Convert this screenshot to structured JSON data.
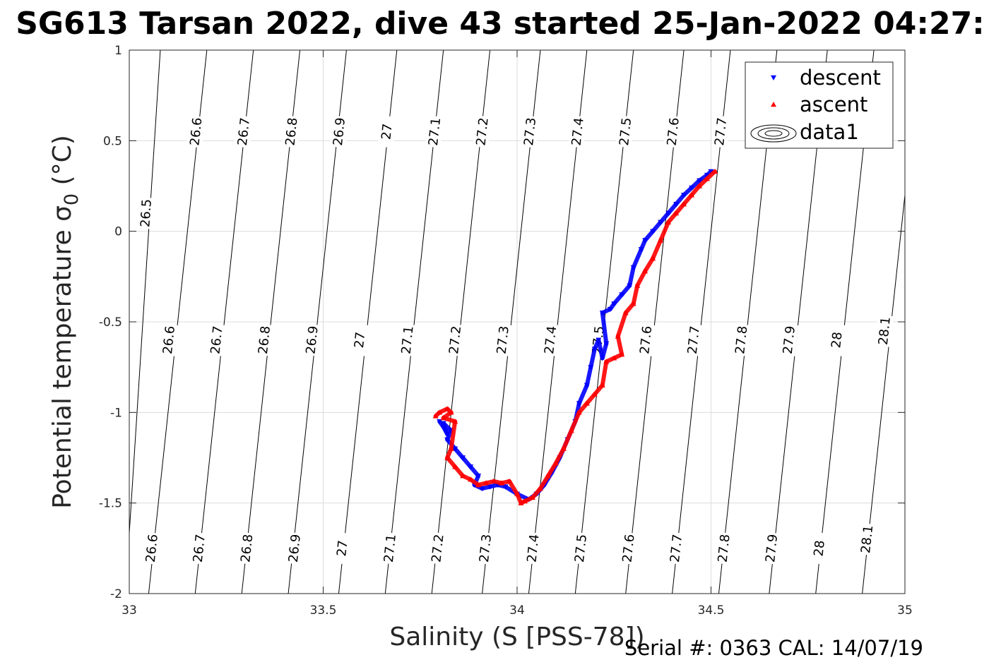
{
  "chart_data": {
    "type": "scatter",
    "title": "SG613 Tarsan 2022, dive 43 started 25-Jan-2022 04:27:",
    "xlabel": "Salinity (S [PSS-78])",
    "ylabel_main": "Potential temperature ",
    "ylabel_sigma": "σ",
    "ylabel_sub": "0",
    "ylabel_unit": " (°C)",
    "xlim": [
      33,
      35
    ],
    "ylim": [
      -2,
      1
    ],
    "x_ticks": [
      33,
      33.5,
      34,
      34.5,
      35
    ],
    "x_tick_labels": [
      "33",
      "33.5",
      "34",
      "34.5",
      "35"
    ],
    "y_ticks": [
      1,
      0.5,
      0,
      -0.5,
      -1,
      -1.5,
      -2
    ],
    "y_tick_labels": [
      "1",
      "0.5",
      "0",
      "-0.5",
      "-1",
      "-1.5",
      "-2"
    ],
    "grid": true,
    "legend_position": "top-right",
    "legend": [
      {
        "label": "descent",
        "color": "#0000ff",
        "marker": "triangle-down"
      },
      {
        "label": "ascent",
        "color": "#ff0000",
        "marker": "triangle-up"
      },
      {
        "label": "data1",
        "color": "#000000",
        "marker": "contour"
      }
    ],
    "isopycnals": [
      {
        "level": "26.5",
        "x_at_top": 33.08,
        "x_at_bottom": 32.99,
        "labels": [
          {
            "x": 33.043,
            "y": 0.1
          }
        ]
      },
      {
        "level": "26.6",
        "x_at_top": 33.2,
        "x_at_bottom": 33.05,
        "labels": [
          {
            "x": 33.172,
            "y": 0.55
          },
          {
            "x": 33.102,
            "y": -0.6
          },
          {
            "x": 33.058,
            "y": -1.75
          }
        ]
      },
      {
        "level": "26.7",
        "x_at_top": 33.32,
        "x_at_bottom": 33.17,
        "labels": [
          {
            "x": 33.295,
            "y": 0.55
          },
          {
            "x": 33.225,
            "y": -0.6
          },
          {
            "x": 33.18,
            "y": -1.75
          }
        ]
      },
      {
        "level": "26.8",
        "x_at_top": 33.44,
        "x_at_bottom": 33.29,
        "labels": [
          {
            "x": 33.418,
            "y": 0.55
          },
          {
            "x": 33.348,
            "y": -0.6
          },
          {
            "x": 33.303,
            "y": -1.75
          }
        ]
      },
      {
        "level": "26.9",
        "x_at_top": 33.56,
        "x_at_bottom": 33.41,
        "labels": [
          {
            "x": 33.541,
            "y": 0.55
          },
          {
            "x": 33.471,
            "y": -0.6
          },
          {
            "x": 33.426,
            "y": -1.75
          }
        ]
      },
      {
        "level": "27",
        "x_at_top": 33.69,
        "x_at_bottom": 33.54,
        "labels": [
          {
            "x": 33.664,
            "y": 0.55
          },
          {
            "x": 33.594,
            "y": -0.6
          },
          {
            "x": 33.549,
            "y": -1.75
          }
        ]
      },
      {
        "level": "27.1",
        "x_at_top": 33.81,
        "x_at_bottom": 33.66,
        "labels": [
          {
            "x": 33.787,
            "y": 0.55
          },
          {
            "x": 33.717,
            "y": -0.6
          },
          {
            "x": 33.672,
            "y": -1.75
          }
        ]
      },
      {
        "level": "27.2",
        "x_at_top": 33.93,
        "x_at_bottom": 33.78,
        "labels": [
          {
            "x": 33.91,
            "y": 0.55
          },
          {
            "x": 33.84,
            "y": -0.6
          },
          {
            "x": 33.795,
            "y": -1.75
          }
        ]
      },
      {
        "level": "27.3",
        "x_at_top": 34.06,
        "x_at_bottom": 33.91,
        "labels": [
          {
            "x": 34.033,
            "y": 0.55
          },
          {
            "x": 33.963,
            "y": -0.6
          },
          {
            "x": 33.918,
            "y": -1.75
          }
        ]
      },
      {
        "level": "27.4",
        "x_at_top": 34.18,
        "x_at_bottom": 34.03,
        "labels": [
          {
            "x": 34.156,
            "y": 0.55
          },
          {
            "x": 34.086,
            "y": -0.6
          },
          {
            "x": 34.041,
            "y": -1.75
          }
        ]
      },
      {
        "level": "27.5",
        "x_at_top": 34.3,
        "x_at_bottom": 34.15,
        "labels": [
          {
            "x": 34.279,
            "y": 0.55
          },
          {
            "x": 34.209,
            "y": -0.6
          },
          {
            "x": 34.164,
            "y": -1.75
          }
        ]
      },
      {
        "level": "27.6",
        "x_at_top": 34.43,
        "x_at_bottom": 34.28,
        "labels": [
          {
            "x": 34.402,
            "y": 0.55
          },
          {
            "x": 34.332,
            "y": -0.6
          },
          {
            "x": 34.287,
            "y": -1.75
          }
        ]
      },
      {
        "level": "27.7",
        "x_at_top": 34.55,
        "x_at_bottom": 34.4,
        "labels": [
          {
            "x": 34.525,
            "y": 0.55
          },
          {
            "x": 34.455,
            "y": -0.6
          },
          {
            "x": 34.41,
            "y": -1.75
          }
        ]
      },
      {
        "level": "27.8",
        "x_at_top": 34.67,
        "x_at_bottom": 34.52,
        "labels": [
          {
            "x": 34.578,
            "y": -0.6
          },
          {
            "x": 34.533,
            "y": -1.75
          }
        ]
      },
      {
        "level": "27.9",
        "x_at_top": 34.8,
        "x_at_bottom": 34.65,
        "labels": [
          {
            "x": 34.701,
            "y": -0.6
          },
          {
            "x": 34.656,
            "y": -1.75
          }
        ]
      },
      {
        "level": "28",
        "x_at_top": 34.92,
        "x_at_bottom": 34.77,
        "labels": [
          {
            "x": 34.824,
            "y": -0.6
          },
          {
            "x": 34.779,
            "y": -1.75
          }
        ]
      },
      {
        "level": "28.1",
        "x_at_top": 35.04,
        "x_at_bottom": 34.89,
        "labels": [
          {
            "x": 34.947,
            "y": -0.55
          },
          {
            "x": 34.902,
            "y": -1.7
          }
        ]
      }
    ],
    "series": [
      {
        "name": "descent",
        "color": "#0000ff",
        "marker": "triangle-down",
        "x": [
          33.8,
          33.81,
          33.82,
          33.81,
          33.83,
          33.82,
          33.84,
          33.86,
          33.88,
          33.9,
          33.89,
          33.91,
          33.93,
          33.95,
          33.97,
          34.0,
          34.03,
          34.05,
          34.07,
          34.09,
          34.11,
          34.13,
          34.15,
          34.16,
          34.18,
          34.19,
          34.2,
          34.21,
          34.22,
          34.23,
          34.22,
          34.24,
          34.25,
          34.27,
          34.29,
          34.3,
          34.32,
          34.33,
          34.35,
          34.37,
          34.39,
          34.41,
          34.43,
          34.45,
          34.47,
          34.49,
          34.5
        ],
        "y": [
          -1.05,
          -1.08,
          -1.12,
          -1.06,
          -1.1,
          -1.15,
          -1.2,
          -1.25,
          -1.3,
          -1.35,
          -1.4,
          -1.42,
          -1.41,
          -1.4,
          -1.41,
          -1.45,
          -1.48,
          -1.45,
          -1.4,
          -1.33,
          -1.25,
          -1.15,
          -1.05,
          -0.95,
          -0.85,
          -0.75,
          -0.65,
          -0.6,
          -0.7,
          -0.62,
          -0.45,
          -0.43,
          -0.4,
          -0.35,
          -0.3,
          -0.2,
          -0.1,
          -0.05,
          0.0,
          0.05,
          0.1,
          0.15,
          0.2,
          0.24,
          0.28,
          0.31,
          0.33
        ]
      },
      {
        "name": "ascent",
        "color": "#ff0000",
        "marker": "triangle-up",
        "x": [
          33.79,
          33.8,
          33.82,
          33.83,
          33.81,
          33.84,
          33.83,
          33.82,
          33.84,
          33.86,
          33.88,
          33.9,
          33.92,
          33.94,
          33.96,
          33.98,
          34.0,
          34.01,
          34.02,
          34.04,
          34.06,
          34.08,
          34.1,
          34.12,
          34.14,
          34.16,
          34.18,
          34.2,
          34.22,
          34.23,
          34.25,
          34.27,
          34.26,
          34.28,
          34.3,
          34.31,
          34.33,
          34.35,
          34.37,
          34.39,
          34.41,
          34.43,
          34.45,
          34.47,
          34.49,
          34.51
        ],
        "y": [
          -1.02,
          -1.0,
          -0.98,
          -1.0,
          -1.03,
          -1.05,
          -1.2,
          -1.25,
          -1.3,
          -1.35,
          -1.37,
          -1.4,
          -1.39,
          -1.38,
          -1.39,
          -1.38,
          -1.45,
          -1.5,
          -1.49,
          -1.47,
          -1.42,
          -1.35,
          -1.28,
          -1.2,
          -1.1,
          -1.0,
          -0.95,
          -0.9,
          -0.85,
          -0.72,
          -0.7,
          -0.68,
          -0.58,
          -0.45,
          -0.4,
          -0.3,
          -0.22,
          -0.15,
          -0.05,
          0.05,
          0.1,
          0.15,
          0.2,
          0.25,
          0.29,
          0.33
        ]
      }
    ]
  },
  "footer": {
    "serial_text": "Serial #: 0363  CAL: 14/07/19"
  }
}
